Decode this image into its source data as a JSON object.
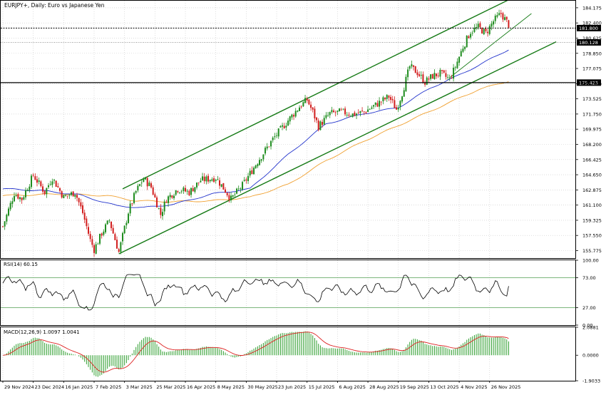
{
  "chart_data": {
    "type": "candlestick",
    "title": "EURJPY+, Daily:  Euro vs Japanese Yen",
    "colors": {
      "bull": "#1e8c1e",
      "bear": "#d21e1e",
      "ma_fast": "#2233cc",
      "ma_slow": "#f0a030",
      "channel": "#157a15",
      "rsi_line": "#000000",
      "rsi_levels": "#2e8b2e",
      "macd_hist": "#2e9e2e",
      "macd_signal": "#dd2222",
      "price_tag": "#000000"
    },
    "price_axis": {
      "ticks": [
        "184.175",
        "182.400",
        "180.625",
        "178.850",
        "177.075",
        "175.300",
        "173.525",
        "171.750",
        "169.975",
        "168.200",
        "166.425",
        "164.650",
        "162.875",
        "161.100",
        "159.325",
        "157.550",
        "155.775"
      ],
      "range": [
        154.9,
        185.0
      ],
      "last_price_label": "181.800",
      "last_price": 181.8,
      "level2_label": "180.128",
      "level2": 180.128,
      "level3_label": "175.423",
      "level3": 175.423
    },
    "x_axis": {
      "labels": [
        "29 Nov 2024",
        "23 Dec 2024",
        "16 Jan 2025",
        "7 Feb 2025",
        "3 Mar 2025",
        "25 Mar 2025",
        "16 Apr 2025",
        "8 May 2025",
        "30 May 2025",
        "23 Jun 2025",
        "15 Jul 2025",
        "6 Aug 2025",
        "28 Aug 2025",
        "19 Sep 2025",
        "13 Oct 2025",
        "4 Nov 2025",
        "26 Nov 2025"
      ],
      "label_positions": [
        0,
        16,
        32,
        48,
        64,
        80,
        96,
        112,
        128,
        144,
        160,
        176,
        192,
        208,
        224,
        240,
        256
      ],
      "total_bars": 267
    },
    "price_path": {
      "anchors": [
        [
          0,
          158.6
        ],
        [
          6,
          162.5
        ],
        [
          10,
          161.8
        ],
        [
          16,
          164.6
        ],
        [
          22,
          162.6
        ],
        [
          26,
          164.3
        ],
        [
          32,
          162.0
        ],
        [
          38,
          162.6
        ],
        [
          42,
          160.2
        ],
        [
          46,
          157.0
        ],
        [
          48,
          155.9
        ],
        [
          52,
          157.8
        ],
        [
          56,
          159.3
        ],
        [
          61,
          155.6
        ],
        [
          66,
          160.3
        ],
        [
          70,
          162.7
        ],
        [
          74,
          164.2
        ],
        [
          78,
          163.2
        ],
        [
          83,
          160.0
        ],
        [
          86,
          161.8
        ],
        [
          92,
          163.0
        ],
        [
          98,
          162.6
        ],
        [
          104,
          164.0
        ],
        [
          112,
          164.3
        ],
        [
          117,
          162.8
        ],
        [
          120,
          161.8
        ],
        [
          126,
          163.4
        ],
        [
          134,
          166.2
        ],
        [
          142,
          168.8
        ],
        [
          150,
          171.0
        ],
        [
          156,
          172.6
        ],
        [
          160,
          173.4
        ],
        [
          163,
          172.0
        ],
        [
          166,
          170.3
        ],
        [
          172,
          171.8
        ],
        [
          178,
          172.0
        ],
        [
          184,
          171.7
        ],
        [
          190,
          172.0
        ],
        [
          196,
          172.8
        ],
        [
          203,
          173.8
        ],
        [
          207,
          172.3
        ],
        [
          210,
          174.2
        ],
        [
          214,
          177.3
        ],
        [
          218,
          176.6
        ],
        [
          222,
          175.5
        ],
        [
          226,
          176.2
        ],
        [
          230,
          176.5
        ],
        [
          235,
          175.8
        ],
        [
          238,
          177.3
        ],
        [
          242,
          179.6
        ],
        [
          246,
          181.4
        ],
        [
          250,
          181.9
        ],
        [
          254,
          181.2
        ],
        [
          258,
          182.6
        ],
        [
          262,
          183.5
        ],
        [
          266,
          182.2
        ]
      ]
    },
    "channel_lines": [
      {
        "name": "channel-upper",
        "p1": [
          63,
          163.0
        ],
        "p2": [
          266,
          185.1
        ]
      },
      {
        "name": "channel-lower",
        "p1": [
          61,
          155.4
        ],
        "p2": [
          291,
          180.2
        ]
      },
      {
        "name": "trend-inner",
        "p1": [
          235,
          176.0
        ],
        "p2": [
          278,
          183.5
        ]
      }
    ],
    "ma_fast_anchors": [
      [
        0,
        163.0
      ],
      [
        20,
        162.8
      ],
      [
        40,
        162.3
      ],
      [
        60,
        161.0
      ],
      [
        74,
        160.8
      ],
      [
        90,
        161.2
      ],
      [
        110,
        162.4
      ],
      [
        130,
        163.0
      ],
      [
        150,
        167.0
      ],
      [
        170,
        170.6
      ],
      [
        190,
        171.8
      ],
      [
        208,
        172.5
      ],
      [
        225,
        174.8
      ],
      [
        240,
        176.3
      ],
      [
        255,
        178.0
      ],
      [
        266,
        179.3
      ]
    ],
    "ma_slow_anchors": [
      [
        0,
        162.2
      ],
      [
        30,
        162.4
      ],
      [
        55,
        162.2
      ],
      [
        70,
        161.6
      ],
      [
        90,
        161.5
      ],
      [
        110,
        161.6
      ],
      [
        130,
        162.0
      ],
      [
        150,
        163.5
      ],
      [
        170,
        166.3
      ],
      [
        190,
        168.6
      ],
      [
        210,
        170.6
      ],
      [
        230,
        172.6
      ],
      [
        250,
        174.6
      ],
      [
        266,
        175.6
      ]
    ],
    "rsi": {
      "label": "RSI(14) 60.15",
      "value": 60.15,
      "period": 14,
      "ticks": [
        "100.00",
        "73.00",
        "27.00",
        "0.00"
      ],
      "levels": [
        73,
        27
      ],
      "range": [
        0,
        100
      ]
    },
    "macd": {
      "label": "MACD(12,26,9) 1.0097 1.0041",
      "values": [
        1.0097,
        1.0041
      ],
      "ticks": [
        "2.0881",
        "0.0000",
        "-1.9033"
      ],
      "range": [
        -1.9033,
        2.0881
      ]
    }
  }
}
